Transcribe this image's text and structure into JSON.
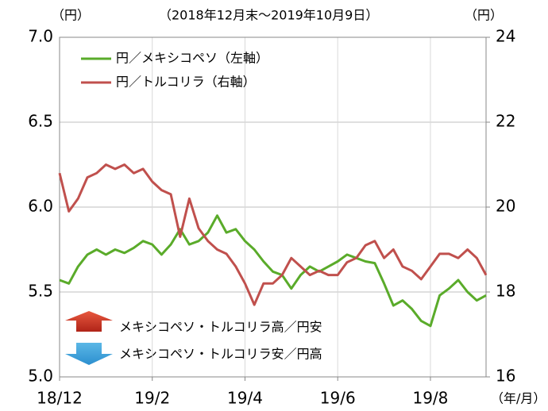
{
  "chart_data": {
    "type": "line",
    "title": "（2018年12月末～2019年10月9日）",
    "ylabel": "（円）",
    "y2label": "（円）",
    "xlabel": "（年/月）",
    "categories": [
      "18/12",
      null,
      null,
      null,
      null,
      null,
      null,
      null,
      null,
      null,
      "19/2",
      null,
      null,
      null,
      null,
      null,
      null,
      null,
      null,
      null,
      "19/4",
      null,
      null,
      null,
      null,
      null,
      null,
      null,
      null,
      null,
      "19/6",
      null,
      null,
      null,
      null,
      null,
      null,
      null,
      null,
      null,
      "19/8",
      null,
      null,
      null,
      null,
      null,
      null
    ],
    "series": [
      {
        "name": "円／メキシコペソ（左軸）",
        "color": "#5aab2a",
        "axis": "y",
        "values": [
          5.57,
          5.55,
          5.65,
          5.72,
          5.75,
          5.72,
          5.75,
          5.73,
          5.76,
          5.8,
          5.78,
          5.72,
          5.78,
          5.87,
          5.78,
          5.8,
          5.85,
          5.95,
          5.85,
          5.87,
          5.8,
          5.75,
          5.68,
          5.62,
          5.6,
          5.52,
          5.6,
          5.65,
          5.62,
          5.65,
          5.68,
          5.72,
          5.7,
          5.68,
          5.67,
          5.55,
          5.42,
          5.45,
          5.4,
          5.33,
          5.3,
          5.48,
          5.52,
          5.57,
          5.5,
          5.45,
          5.48
        ]
      },
      {
        "name": "円／トルコリラ（右軸）",
        "color": "#c0504d",
        "axis": "y2",
        "values": [
          20.8,
          19.9,
          20.2,
          20.7,
          20.8,
          21.0,
          20.9,
          21.0,
          20.8,
          20.9,
          20.6,
          20.4,
          20.3,
          19.3,
          20.2,
          19.5,
          19.2,
          19.0,
          18.9,
          18.6,
          18.2,
          17.7,
          18.2,
          18.2,
          18.4,
          18.8,
          18.6,
          18.4,
          18.5,
          18.4,
          18.4,
          18.7,
          18.8,
          19.1,
          19.2,
          18.8,
          19.0,
          18.6,
          18.5,
          18.3,
          18.6,
          18.9,
          18.9,
          18.8,
          19.0,
          18.8,
          18.4
        ]
      }
    ],
    "ylim": [
      5,
      7
    ],
    "yticks": [
      {
        "value": 5,
        "label": "5.0"
      },
      {
        "value": 5.5,
        "label": "5.5"
      },
      {
        "value": 6,
        "label": "6.0"
      },
      {
        "value": 6.5,
        "label": "6.5"
      },
      {
        "value": 7,
        "label": "7.0"
      }
    ],
    "y2lim": [
      16,
      24
    ],
    "y2ticks": [
      16,
      18,
      20,
      22,
      24
    ],
    "grid": true,
    "legend": "upper left",
    "annotations": [
      "メキシコペソ・トルコリラ高／円安",
      "メキシコペソ・トルコリラ安／円高"
    ]
  }
}
